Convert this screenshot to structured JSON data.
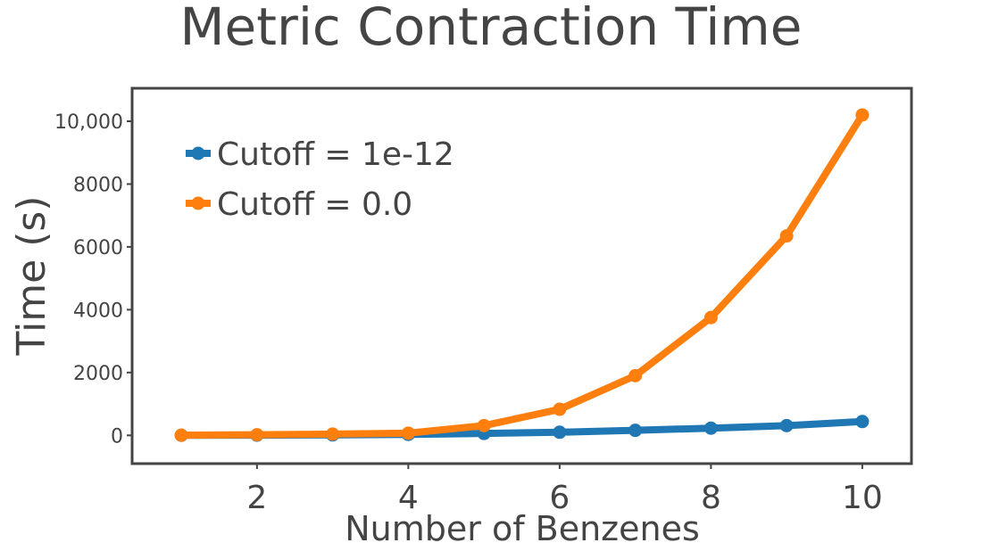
{
  "chart_data": {
    "type": "line",
    "title": "Metric Contraction Time",
    "xlabel": "Number of Benzenes",
    "ylabel": "Time (s)",
    "x": [
      1,
      2,
      3,
      4,
      5,
      6,
      7,
      8,
      9,
      10
    ],
    "xlim": [
      0.35,
      10.65
    ],
    "ylim": [
      -900,
      11050
    ],
    "xticks": [
      2,
      4,
      6,
      8,
      10
    ],
    "xtick_labels": [
      "2",
      "4",
      "6",
      "8",
      "10"
    ],
    "yticks": [
      0,
      2000,
      4000,
      6000,
      8000,
      10000
    ],
    "ytick_labels": [
      "0",
      "2000",
      "4000",
      "6000",
      "8000",
      "10,000"
    ],
    "grid": false,
    "legend_position": "top-left",
    "series": [
      {
        "name": "Cutoff = 1e-12",
        "color": "#1f77b4",
        "values": [
          2,
          5,
          15,
          30,
          60,
          100,
          160,
          230,
          310,
          440
        ]
      },
      {
        "name": "Cutoff = 0.0",
        "color": "#ff7f0e",
        "values": [
          5,
          20,
          40,
          70,
          310,
          830,
          1900,
          3750,
          6350,
          10200
        ]
      }
    ]
  }
}
